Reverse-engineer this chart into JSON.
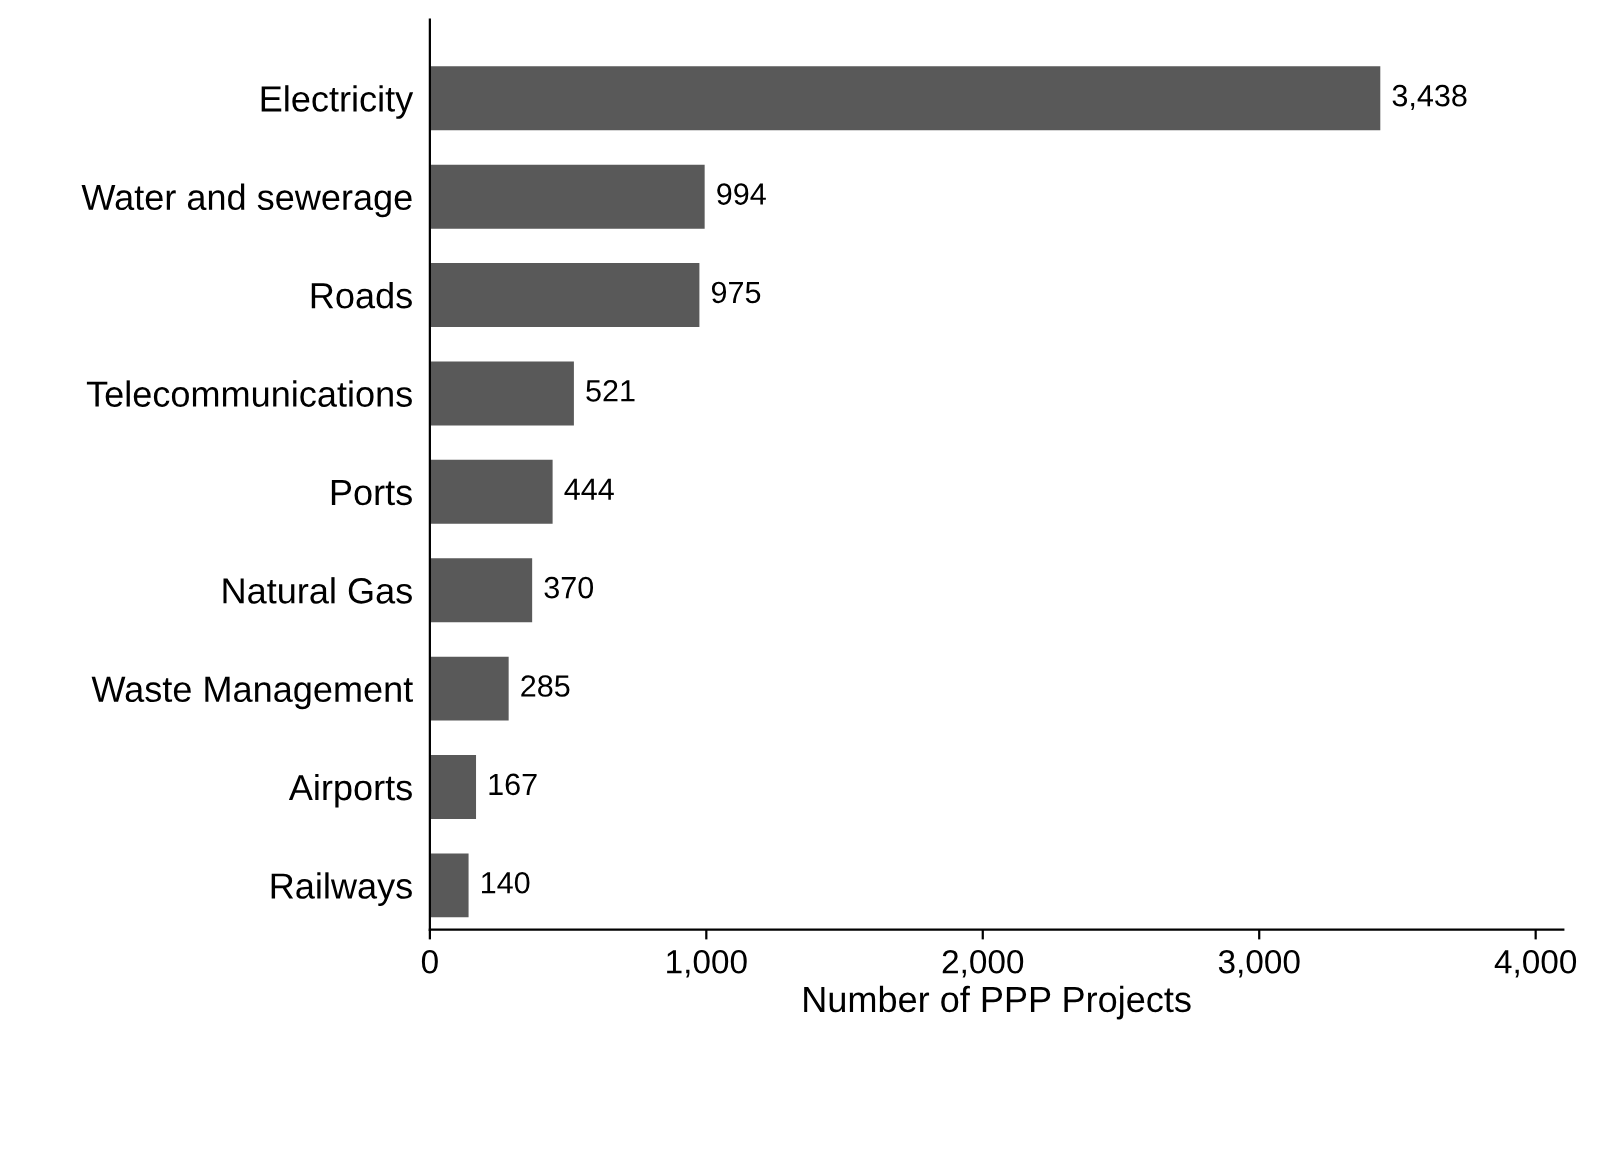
{
  "chart_data": {
    "type": "bar",
    "orientation": "horizontal",
    "xlabel": "Number of PPP Projects",
    "categories": [
      "Electricity",
      "Water and sewerage",
      "Roads",
      "Telecommunications",
      "Ports",
      "Natural Gas",
      "Waste Management",
      "Airports",
      "Railways"
    ],
    "values": [
      3438,
      994,
      975,
      521,
      444,
      370,
      285,
      167,
      140
    ],
    "value_labels": [
      "3,438",
      "994",
      "975",
      "521",
      "444",
      "370",
      "285",
      "167",
      "140"
    ],
    "color": "#595959",
    "xlim": [
      0,
      4100
    ],
    "xticks": [
      0,
      {
        "value": 1000,
        "label": "1,000"
      },
      {
        "value": 2000,
        "label": "2,000"
      },
      {
        "value": 3000,
        "label": "3,000"
      },
      {
        "value": 4000,
        "label": "4,000"
      }
    ],
    "grid": false,
    "legend": false
  }
}
